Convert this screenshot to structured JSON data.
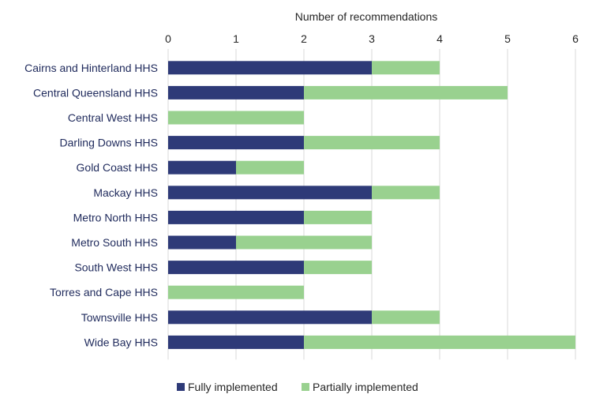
{
  "chart_data": {
    "type": "bar",
    "orientation": "horizontal",
    "stacked": true,
    "title": "",
    "xlabel": "Number of recommendations",
    "xlabel_position": "top",
    "ylabel": "",
    "xlim": [
      0,
      6
    ],
    "xticks": [
      "0",
      "1",
      "2",
      "3",
      "4",
      "5",
      "6"
    ],
    "grid": true,
    "legend_position": "bottom",
    "categories": [
      "Cairns and Hinterland HHS",
      "Central Queensland HHS",
      "Central West HHS",
      "Darling Downs HHS",
      "Gold Coast HHS",
      "Mackay HHS",
      "Metro North HHS",
      "Metro South HHS",
      "South West HHS",
      "Torres and Cape HHS",
      "Townsville HHS",
      "Wide Bay HHS"
    ],
    "series": [
      {
        "name": "Fully implemented",
        "color": "#2e3a78",
        "values": [
          3,
          2,
          0,
          2,
          1,
          3,
          2,
          1,
          2,
          0,
          3,
          2
        ]
      },
      {
        "name": "Partially implemented",
        "color": "#99d18f",
        "values": [
          1,
          3,
          2,
          2,
          1,
          1,
          1,
          2,
          1,
          2,
          1,
          4
        ]
      }
    ]
  }
}
